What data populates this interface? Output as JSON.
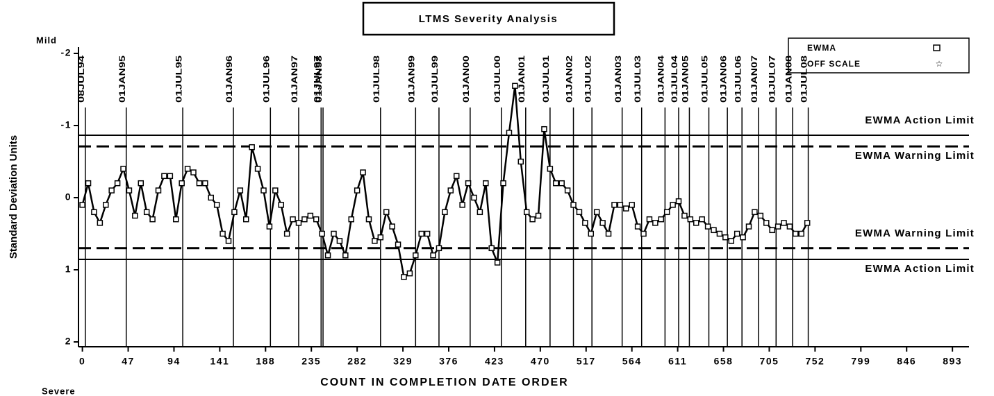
{
  "chart_data": {
    "type": "line",
    "title": "LTMS Severity Analysis",
    "x_label": "COUNT IN COMPLETION DATE ORDER",
    "y_label": "Standard Deviation Units",
    "y_top_label": "Mild",
    "y_bottom_label": "Severe",
    "y_inverted": true,
    "xlim": [
      -4,
      910
    ],
    "ylim": [
      -2,
      2
    ],
    "xticks": [
      0,
      47,
      94,
      141,
      188,
      235,
      282,
      329,
      376,
      423,
      470,
      517,
      564,
      611,
      658,
      705,
      752,
      799,
      846,
      893
    ],
    "yticks": [
      -2,
      -1,
      0,
      1,
      2
    ],
    "legend": "top-right",
    "off_scale_label": "OFF SCALE",
    "x": [
      0,
      6,
      12,
      18,
      24,
      30,
      36,
      42,
      48,
      54,
      60,
      66,
      72,
      78,
      84,
      90,
      96,
      102,
      108,
      114,
      120,
      126,
      132,
      138,
      144,
      150,
      156,
      162,
      168,
      174,
      180,
      186,
      192,
      198,
      204,
      210,
      216,
      222,
      228,
      234,
      240,
      246,
      252,
      258,
      264,
      270,
      276,
      282,
      288,
      294,
      300,
      306,
      312,
      318,
      324,
      330,
      336,
      342,
      348,
      354,
      360,
      366,
      372,
      378,
      384,
      390,
      396,
      402,
      408,
      414,
      420,
      426,
      432,
      438,
      444,
      450,
      456,
      462,
      468,
      474,
      480,
      486,
      492,
      498,
      504,
      510,
      516,
      522,
      528,
      534,
      540,
      546,
      552,
      558,
      564,
      570,
      576,
      582,
      588,
      594,
      600,
      606,
      612,
      618,
      624,
      630,
      636,
      642,
      648,
      654,
      660,
      666,
      672,
      678,
      684,
      690,
      696,
      702,
      708,
      714,
      720,
      726,
      732,
      738,
      744
    ],
    "series": [
      {
        "name": "EWMA",
        "color": "#000000",
        "values": [
          0.1,
          -0.2,
          0.2,
          0.35,
          0.1,
          -0.1,
          -0.2,
          -0.4,
          -0.1,
          0.25,
          -0.2,
          0.2,
          0.3,
          -0.1,
          -0.3,
          -0.3,
          0.3,
          -0.2,
          -0.4,
          -0.35,
          -0.2,
          -0.2,
          0.0,
          0.1,
          0.5,
          0.6,
          0.2,
          -0.1,
          0.3,
          -0.7,
          -0.4,
          -0.1,
          0.4,
          -0.1,
          0.1,
          0.5,
          0.3,
          0.35,
          0.3,
          0.25,
          0.3,
          0.5,
          0.8,
          0.5,
          0.6,
          0.8,
          0.3,
          -0.1,
          -0.35,
          0.3,
          0.6,
          0.55,
          0.2,
          0.4,
          0.65,
          1.1,
          1.05,
          0.8,
          0.5,
          0.5,
          0.8,
          0.7,
          0.2,
          -0.1,
          -0.3,
          0.1,
          -0.2,
          0.0,
          0.2,
          -0.2,
          0.7,
          0.9,
          -0.2,
          -0.9,
          -1.55,
          -0.5,
          0.2,
          0.3,
          0.25,
          -0.95,
          -0.4,
          -0.2,
          -0.2,
          -0.1,
          0.1,
          0.2,
          0.35,
          0.5,
          0.2,
          0.35,
          0.5,
          0.1,
          0.1,
          0.15,
          0.1,
          0.4,
          0.5,
          0.3,
          0.35,
          0.3,
          0.2,
          0.1,
          0.05,
          0.25,
          0.3,
          0.35,
          0.3,
          0.4,
          0.45,
          0.5,
          0.55,
          0.6,
          0.5,
          0.55,
          0.4,
          0.2,
          0.25,
          0.35,
          0.45,
          0.4,
          0.35,
          0.4,
          0.5,
          0.5,
          0.35
        ]
      }
    ],
    "reference_lines": [
      {
        "value": -0.865,
        "label": "EWMA Action Limit",
        "style": "solid"
      },
      {
        "value": -0.71,
        "label": "EWMA Warning Limit",
        "style": "dashed"
      },
      {
        "value": 0.7,
        "label": "EWMA Warning Limit",
        "style": "dashed"
      },
      {
        "value": 0.856,
        "label": "EWMA Action Limit",
        "style": "solid"
      }
    ],
    "date_lines": [
      {
        "value": 3,
        "label": "08JUL94"
      },
      {
        "value": 45,
        "label": "01JAN95"
      },
      {
        "value": 103,
        "label": "01JUL95"
      },
      {
        "value": 155,
        "label": "01JAN96"
      },
      {
        "value": 193,
        "label": "01JUL96"
      },
      {
        "value": 222,
        "label": "01JAN97"
      },
      {
        "value": 245,
        "label": "01JUL97"
      },
      {
        "value": 247,
        "label": "01JAN98"
      },
      {
        "value": 306,
        "label": "01JUL98"
      },
      {
        "value": 342,
        "label": "01JAN99"
      },
      {
        "value": 366,
        "label": "01JUL99"
      },
      {
        "value": 398,
        "label": "01JAN00"
      },
      {
        "value": 430,
        "label": "01JUL00"
      },
      {
        "value": 455,
        "label": "01JAN01"
      },
      {
        "value": 480,
        "label": "01JUL01"
      },
      {
        "value": 504,
        "label": "01JAN02"
      },
      {
        "value": 523,
        "label": "01JUL02"
      },
      {
        "value": 554,
        "label": "01JAN03"
      },
      {
        "value": 574,
        "label": "01JUL03"
      },
      {
        "value": 598,
        "label": "01JAN04"
      },
      {
        "value": 612,
        "label": "01JUL04"
      },
      {
        "value": 623,
        "label": "01JAN05"
      },
      {
        "value": 643,
        "label": "01JUL05"
      },
      {
        "value": 662,
        "label": "01JAN06"
      },
      {
        "value": 677,
        "label": "01JUL06"
      },
      {
        "value": 694,
        "label": "01JAN07"
      },
      {
        "value": 712,
        "label": "01JUL07"
      },
      {
        "value": 729,
        "label": "01JAN08"
      },
      {
        "value": 745,
        "label": "01JUL08"
      }
    ]
  }
}
